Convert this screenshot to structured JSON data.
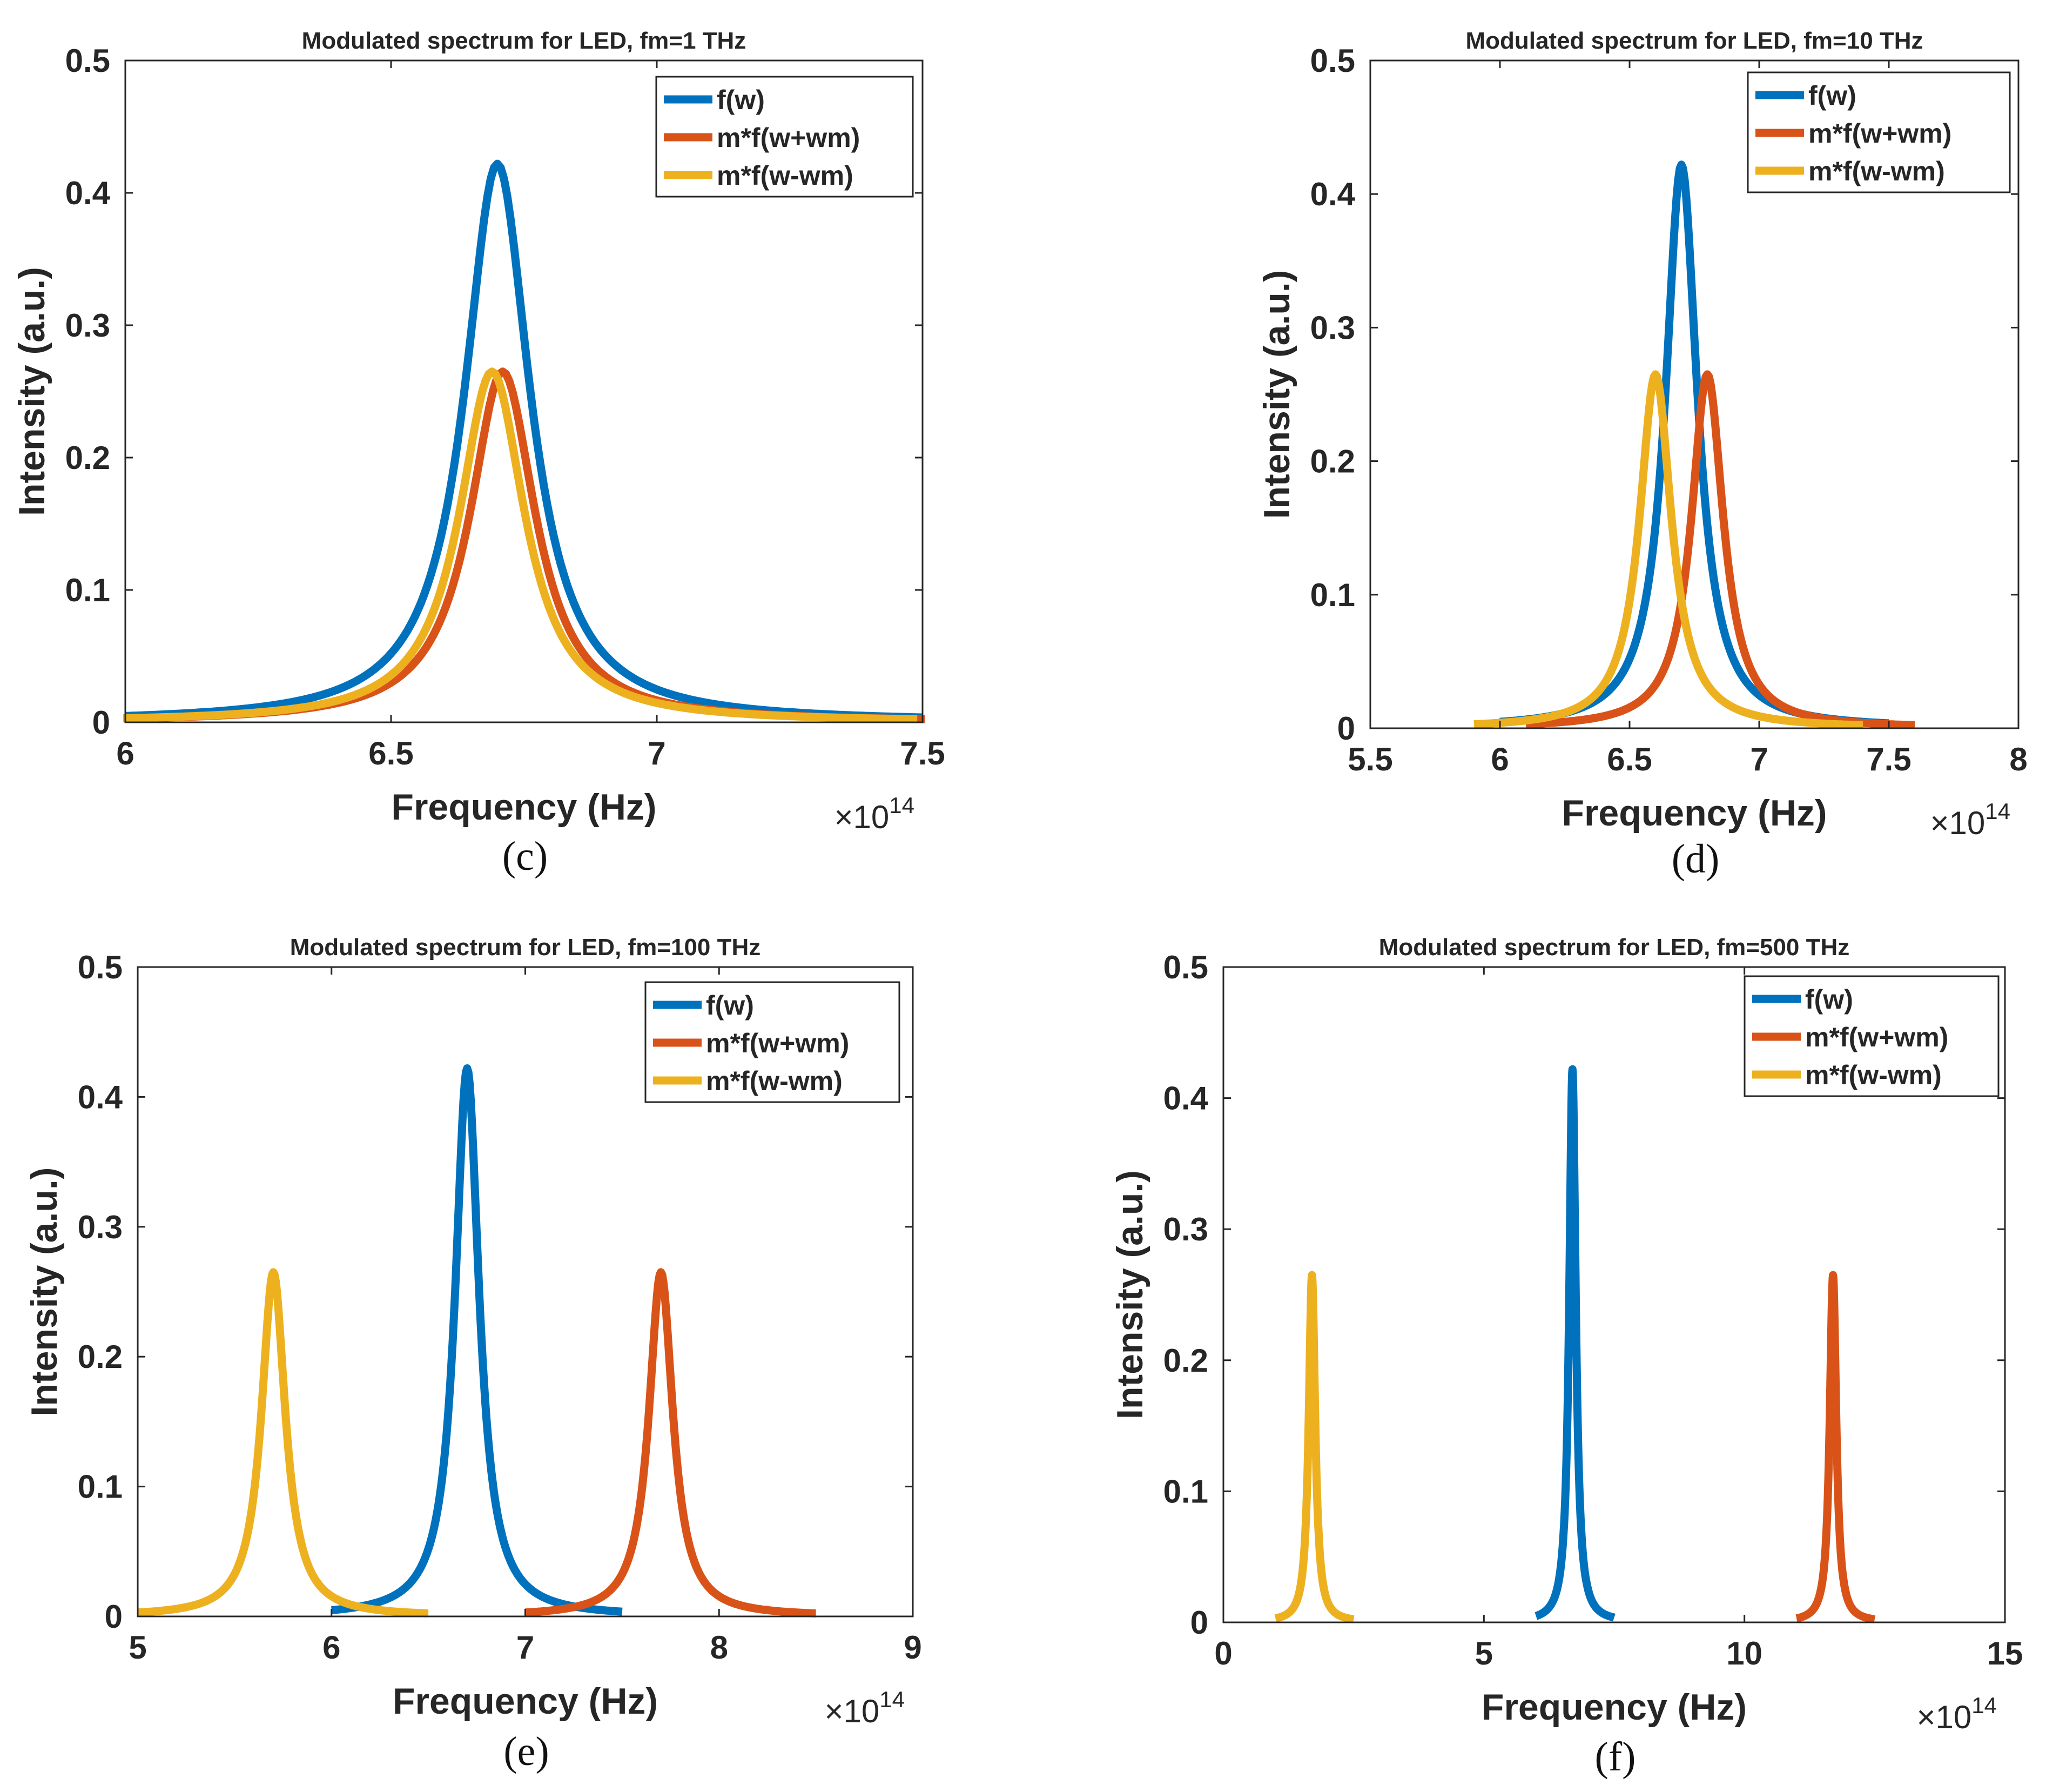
{
  "figure": {
    "description_colors": {
      "f": "#0072BD",
      "plus": "#D95319",
      "minus": "#EDB120"
    }
  },
  "chart_data": [
    {
      "type": "line",
      "panel_label": "(c)",
      "title": "Modulated spectrum for LED, fm=1 THz",
      "xlabel": "Frequency (Hz)",
      "ylabel": "Intensity (a.u.)",
      "x_exponent_prefix": "×10",
      "x_exponent": "14",
      "xlim": [
        6,
        7.5
      ],
      "ylim": [
        0,
        0.5
      ],
      "xticks": [
        6,
        6.5,
        7,
        7.5
      ],
      "xtick_labels": [
        "6",
        "6.5",
        "7",
        "7.5"
      ],
      "yticks": [
        0,
        0.1,
        0.2,
        0.3,
        0.4,
        0.5
      ],
      "ytick_labels": [
        "0",
        "0.1",
        "0.2",
        "0.3",
        "0.4",
        "0.5"
      ],
      "legend_position": "top-right",
      "series": [
        {
          "name": "f(w)",
          "color": "#0072BD",
          "center": 6.7,
          "peak": 0.422,
          "gamma": 0.075,
          "xmin": 6.0,
          "xmax": 7.5
        },
        {
          "name": "m*f(w+wm)",
          "color": "#D95319",
          "center": 6.71,
          "peak": 0.265,
          "gamma": 0.075,
          "xmin": 6.01,
          "xmax": 7.51
        },
        {
          "name": "m*f(w-wm)",
          "color": "#EDB120",
          "center": 6.69,
          "peak": 0.265,
          "gamma": 0.075,
          "xmin": 5.99,
          "xmax": 7.49
        }
      ]
    },
    {
      "type": "line",
      "panel_label": "(d)",
      "title": "Modulated spectrum for LED, fm=10 THz",
      "xlabel": "Frequency (Hz)",
      "ylabel": "Intensity (a.u.)",
      "x_exponent_prefix": "×10",
      "x_exponent": "14",
      "xlim": [
        5.5,
        8
      ],
      "ylim": [
        0,
        0.5
      ],
      "xticks": [
        5.5,
        6,
        6.5,
        7,
        7.5,
        8
      ],
      "xtick_labels": [
        "5.5",
        "6",
        "6.5",
        "7",
        "7.5",
        "8"
      ],
      "yticks": [
        0,
        0.1,
        0.2,
        0.3,
        0.4,
        0.5
      ],
      "ytick_labels": [
        "0",
        "0.1",
        "0.2",
        "0.3",
        "0.4",
        "0.5"
      ],
      "legend_position": "top-right",
      "series": [
        {
          "name": "f(w)",
          "color": "#0072BD",
          "center": 6.7,
          "peak": 0.422,
          "gamma": 0.075,
          "xmin": 6.0,
          "xmax": 7.5
        },
        {
          "name": "m*f(w+wm)",
          "color": "#D95319",
          "center": 6.8,
          "peak": 0.265,
          "gamma": 0.075,
          "xmin": 6.1,
          "xmax": 7.6
        },
        {
          "name": "m*f(w-wm)",
          "color": "#EDB120",
          "center": 6.6,
          "peak": 0.265,
          "gamma": 0.075,
          "xmin": 5.9,
          "xmax": 7.4
        }
      ]
    },
    {
      "type": "line",
      "panel_label": "(e)",
      "title": "Modulated spectrum for LED, fm=100 THz",
      "xlabel": "Frequency (Hz)",
      "ylabel": "Intensity (a.u.)",
      "x_exponent_prefix": "×10",
      "x_exponent": "14",
      "xlim": [
        5,
        9
      ],
      "ylim": [
        0,
        0.5
      ],
      "xticks": [
        5,
        6,
        7,
        8,
        9
      ],
      "xtick_labels": [
        "5",
        "6",
        "7",
        "8",
        "9"
      ],
      "yticks": [
        0,
        0.1,
        0.2,
        0.3,
        0.4,
        0.5
      ],
      "ytick_labels": [
        "0",
        "0.1",
        "0.2",
        "0.3",
        "0.4",
        "0.5"
      ],
      "legend_position": "top-right",
      "series": [
        {
          "name": "f(w)",
          "color": "#0072BD",
          "center": 6.7,
          "peak": 0.422,
          "gamma": 0.075,
          "xmin": 6.0,
          "xmax": 7.5
        },
        {
          "name": "m*f(w+wm)",
          "color": "#D95319",
          "center": 7.7,
          "peak": 0.265,
          "gamma": 0.075,
          "xmin": 7.0,
          "xmax": 8.5
        },
        {
          "name": "m*f(w-wm)",
          "color": "#EDB120",
          "center": 5.7,
          "peak": 0.265,
          "gamma": 0.075,
          "xmin": 5.0,
          "xmax": 6.5
        }
      ]
    },
    {
      "type": "line",
      "panel_label": "(f)",
      "title": "Modulated spectrum for LED, fm=500 THz",
      "xlabel": "Frequency (Hz)",
      "ylabel": "Intensity (a.u.)",
      "x_exponent_prefix": "×10",
      "x_exponent": "14",
      "xlim": [
        0,
        15
      ],
      "ylim": [
        0,
        0.5
      ],
      "xticks": [
        0,
        5,
        10,
        15
      ],
      "xtick_labels": [
        "0",
        "5",
        "10",
        "15"
      ],
      "yticks": [
        0,
        0.1,
        0.2,
        0.3,
        0.4,
        0.5
      ],
      "ytick_labels": [
        "0",
        "0.1",
        "0.2",
        "0.3",
        "0.4",
        "0.5"
      ],
      "legend_position": "top-right",
      "series": [
        {
          "name": "f(w)",
          "color": "#0072BD",
          "center": 6.7,
          "peak": 0.422,
          "gamma": 0.075,
          "xmin": 6.0,
          "xmax": 7.5
        },
        {
          "name": "m*f(w+wm)",
          "color": "#D95319",
          "center": 11.7,
          "peak": 0.265,
          "gamma": 0.075,
          "xmin": 11.0,
          "xmax": 12.5
        },
        {
          "name": "m*f(w-wm)",
          "color": "#EDB120",
          "center": 1.7,
          "peak": 0.265,
          "gamma": 0.075,
          "xmin": 1.0,
          "xmax": 2.5
        }
      ]
    }
  ]
}
